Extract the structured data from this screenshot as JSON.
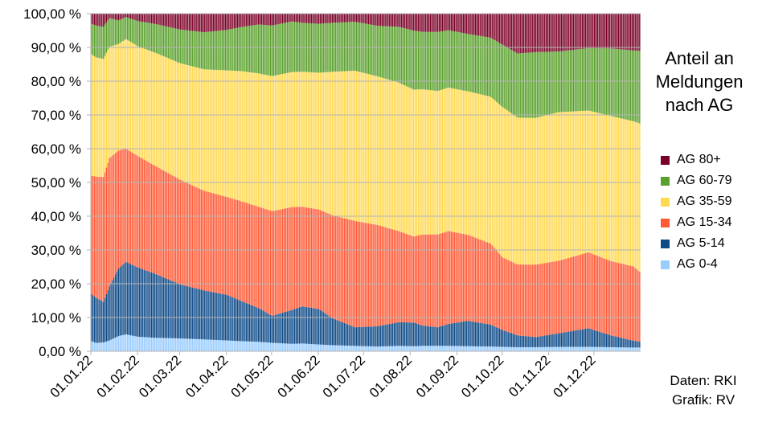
{
  "chart_data": {
    "type": "area",
    "stacked": true,
    "percent_stacked": true,
    "title": "Anteil an Meldungen nach AG",
    "title_lines": [
      "Anteil an",
      "Meldungen",
      "nach AG"
    ],
    "y_ticks": [
      "0,00 %",
      "10,00 %",
      "20,00 %",
      "30,00 %",
      "40,00 %",
      "50,00 %",
      "60,00 %",
      "70,00 %",
      "80,00 %",
      "90,00 %",
      "100,00 %"
    ],
    "ylim": [
      0,
      100
    ],
    "x_ticks": [
      "01.01.22",
      "01.02.22",
      "01.03.22",
      "01.04.22",
      "01.05.22",
      "01.06.22",
      "01.07.22",
      "01.08.22",
      "01.09.22",
      "01.10.22",
      "01.11.22",
      "01.12.22"
    ],
    "x_start": "01.01.22",
    "x_end": "31.12.22",
    "grid": true,
    "legend_position": "right",
    "key_days": [
      0,
      3,
      8,
      12,
      18,
      23,
      31,
      42,
      59,
      75,
      90,
      99,
      111,
      120,
      133,
      140,
      151,
      160,
      175,
      190,
      204,
      214,
      220,
      230,
      237,
      250,
      265,
      273,
      283,
      295,
      310,
      330,
      345,
      360,
      364
    ],
    "series": [
      {
        "name": "AG 0-4",
        "color": "#99ccff",
        "values": [
          3,
          2.5,
          2.6,
          3.2,
          4.5,
          5,
          4.3,
          4,
          3.8,
          3.5,
          3.2,
          3,
          2.8,
          2.5,
          2.2,
          2.3,
          2,
          1.8,
          1.6,
          1.4,
          1.6,
          1.5,
          1.6,
          1.6,
          1.6,
          1.5,
          1.4,
          1.3,
          1.2,
          1.2,
          1.3,
          1.3,
          1.2,
          1.1,
          1.1
        ]
      },
      {
        "name": "AG 5-14",
        "color": "#0d4a87",
        "values": [
          14,
          13.5,
          12,
          16,
          20,
          21.5,
          20.5,
          19,
          16,
          14.5,
          13.5,
          12,
          10,
          8,
          10,
          11,
          10.5,
          8,
          5.5,
          6,
          7,
          7,
          6,
          5.5,
          6.5,
          7.5,
          6.5,
          5,
          3.5,
          3,
          4,
          5.5,
          3.5,
          2,
          1.8
        ]
      },
      {
        "name": "AG 15-34",
        "color": "#ff5a36",
        "values": [
          35,
          36,
          37,
          38,
          35,
          33.5,
          33,
          32,
          31,
          29.5,
          29,
          29.5,
          30,
          31,
          30.5,
          29.5,
          29.5,
          30.5,
          31.5,
          30,
          27,
          25.5,
          27,
          27.5,
          27.5,
          25.5,
          24,
          21.5,
          21,
          21.5,
          21.5,
          22.5,
          22,
          22,
          20.6
        ]
      },
      {
        "name": "AG 35-59",
        "color": "#ffd951",
        "values": [
          36,
          35.5,
          35,
          33,
          31.5,
          32.5,
          32.5,
          33.5,
          34.5,
          36,
          37.5,
          38.5,
          39.5,
          40,
          40,
          40,
          40.5,
          42.5,
          44.5,
          44,
          44,
          43.5,
          43,
          42.5,
          42.5,
          42.5,
          43.5,
          44.5,
          43.5,
          43.5,
          44,
          42,
          43,
          43,
          44
        ]
      },
      {
        "name": "AG 60-79",
        "color": "#5aa02c",
        "values": [
          9,
          9.5,
          9.5,
          8.5,
          7,
          6.5,
          7.5,
          8.5,
          10,
          11,
          12,
          13,
          14.5,
          15,
          15,
          14.5,
          14.5,
          14.5,
          14.5,
          15,
          16.5,
          17.5,
          17,
          17.5,
          17,
          17,
          17.5,
          18.5,
          19,
          19.5,
          18,
          18.5,
          20,
          21,
          21.5
        ]
      },
      {
        "name": "AG 80+",
        "color": "#7b0027",
        "values": [
          3,
          3.5,
          3.9,
          1.3,
          2,
          1,
          2.2,
          3,
          4.7,
          5.5,
          4.8,
          4,
          3.2,
          3.5,
          2.3,
          2.7,
          3,
          2.7,
          2.4,
          3.6,
          3.9,
          5,
          5.4,
          5.4,
          4.9,
          6,
          7.1,
          9.2,
          11.8,
          11.4,
          11.2,
          10.2,
          10.3,
          10.9,
          11
        ]
      }
    ]
  },
  "credits": {
    "data_line": "Daten: RKI",
    "graphic_line": "Grafik: RV"
  }
}
